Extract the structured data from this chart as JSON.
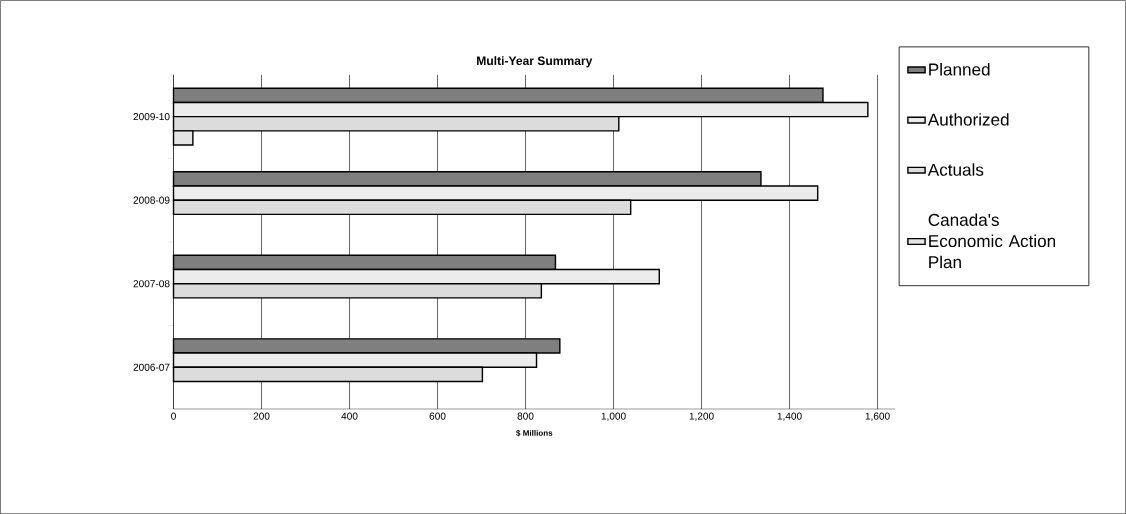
{
  "chart_data": {
    "type": "bar",
    "orientation": "horizontal",
    "title": "Multi-Year Summary",
    "xlabel": "$ Millions",
    "categories": [
      "2009-10",
      "2008-09",
      "2007-08",
      "2006-07"
    ],
    "series": [
      {
        "name": "Planned",
        "color": "#7f7f7f",
        "values": [
          1476,
          1335,
          868,
          878
        ]
      },
      {
        "name": "Authorized",
        "color": "#ececec",
        "values": [
          1578,
          1464,
          1104,
          825
        ]
      },
      {
        "name": "Actuals",
        "color": "#dcdcdc",
        "values": [
          1012,
          1039,
          836,
          702
        ]
      },
      {
        "name": "Canada's Economic Action Plan",
        "color": "#e4e4e4",
        "values": [
          44,
          null,
          null,
          null
        ]
      }
    ],
    "xlim": [
      0,
      1640
    ],
    "xticks": [
      0,
      200,
      400,
      600,
      800,
      {
        "value": 1000,
        "label": "1,000"
      },
      {
        "value": 1200,
        "label": "1,200"
      },
      {
        "value": 1400,
        "label": "1,400"
      },
      {
        "value": 1600,
        "label": "1,600"
      }
    ],
    "grid": "x",
    "legend": "right"
  }
}
